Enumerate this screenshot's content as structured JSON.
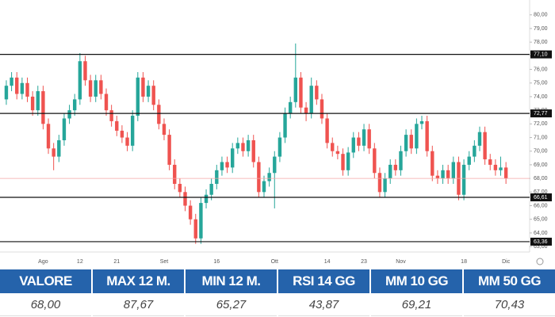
{
  "chart_data": {
    "type": "candlestick",
    "series": [
      {
        "up_color": "#26a69a",
        "down_color": "#ef5350",
        "open": [
          73.8,
          74.8,
          75.4,
          74.2,
          75.0,
          74.0,
          73.0,
          74.4,
          72.0,
          70.2,
          69.6,
          70.8,
          72.4,
          73.0,
          73.8,
          76.6,
          75.2,
          74.0,
          75.2,
          74.2,
          73.0,
          72.2,
          71.5,
          71.0,
          70.4,
          72.6,
          75.4,
          74.0,
          74.8,
          73.4,
          72.0,
          71.2,
          69.0,
          67.6,
          67.0,
          66.0,
          65.0,
          63.6,
          66.2,
          66.8,
          67.6,
          68.6,
          69.2,
          68.8,
          70.2,
          70.6,
          70.0,
          70.8,
          69.2,
          67.0,
          67.8,
          68.4,
          69.6,
          71.0,
          72.8,
          73.6,
          75.4,
          73.2,
          72.8,
          74.8,
          73.8,
          72.4,
          70.6,
          70.0,
          69.8,
          68.6,
          69.9,
          71.0,
          70.4,
          71.6,
          70.2,
          68.4,
          67.0,
          68.0,
          69.0,
          68.6,
          70.0,
          71.2,
          70.2,
          72.0,
          72.2,
          70.0,
          68.2,
          68.0,
          68.6,
          68.0,
          69.2,
          66.8,
          69.0,
          69.6,
          70.4,
          71.4,
          69.4,
          69.0,
          68.6,
          68.8
        ],
        "high": [
          75.2,
          75.8,
          75.8,
          75.4,
          75.4,
          74.4,
          74.8,
          74.8,
          72.4,
          70.6,
          71.2,
          72.8,
          73.4,
          74.2,
          77.2,
          77.0,
          75.6,
          75.6,
          75.6,
          74.6,
          73.4,
          72.6,
          71.9,
          71.4,
          73.0,
          75.8,
          75.8,
          75.2,
          75.2,
          73.8,
          72.4,
          71.6,
          69.4,
          68.0,
          67.4,
          66.4,
          65.4,
          66.6,
          67.2,
          68.0,
          69.0,
          69.6,
          69.6,
          70.6,
          71.0,
          71.0,
          71.2,
          71.2,
          69.6,
          68.2,
          68.8,
          70.0,
          71.4,
          73.2,
          74.0,
          77.9,
          75.8,
          73.6,
          75.4,
          75.2,
          74.2,
          72.8,
          71.0,
          70.4,
          70.2,
          70.3,
          71.4,
          71.4,
          72.0,
          72.0,
          70.6,
          68.8,
          68.4,
          69.4,
          69.4,
          70.4,
          71.6,
          71.6,
          72.4,
          72.6,
          72.6,
          70.4,
          68.6,
          69.0,
          69.0,
          69.6,
          69.6,
          69.4,
          70.0,
          70.8,
          71.8,
          71.8,
          69.8,
          69.4,
          69.6,
          69.2
        ],
        "low": [
          73.4,
          74.4,
          73.8,
          73.8,
          73.6,
          72.6,
          72.6,
          71.6,
          69.8,
          68.6,
          69.2,
          70.4,
          72.0,
          72.6,
          73.4,
          74.8,
          73.6,
          73.6,
          73.8,
          72.6,
          71.8,
          71.1,
          70.6,
          70.0,
          70.0,
          72.2,
          73.6,
          73.6,
          73.0,
          71.6,
          70.8,
          68.6,
          67.2,
          66.6,
          65.6,
          64.6,
          63.2,
          63.2,
          65.8,
          66.4,
          67.2,
          68.2,
          68.4,
          68.4,
          69.8,
          69.6,
          69.6,
          68.8,
          66.6,
          66.6,
          67.4,
          65.8,
          69.2,
          70.6,
          72.4,
          73.2,
          72.8,
          72.2,
          72.4,
          73.4,
          72.0,
          70.2,
          69.6,
          69.4,
          68.2,
          68.2,
          69.5,
          70.0,
          70.0,
          69.8,
          68.0,
          66.6,
          66.6,
          67.6,
          68.2,
          68.2,
          69.6,
          69.8,
          69.8,
          71.6,
          69.6,
          67.8,
          67.6,
          67.6,
          67.6,
          67.6,
          66.4,
          66.4,
          68.6,
          69.2,
          70.0,
          69.0,
          68.6,
          68.2,
          68.2,
          67.6
        ],
        "close": [
          74.8,
          75.4,
          74.2,
          75.0,
          74.0,
          73.0,
          74.4,
          72.0,
          70.2,
          69.6,
          70.8,
          72.4,
          73.0,
          73.8,
          76.6,
          75.2,
          74.0,
          75.2,
          74.2,
          73.0,
          72.2,
          71.5,
          71.0,
          70.4,
          72.6,
          75.4,
          74.0,
          74.8,
          73.4,
          72.0,
          71.2,
          69.0,
          67.6,
          67.0,
          66.0,
          65.0,
          63.6,
          66.2,
          66.8,
          67.6,
          68.6,
          69.2,
          68.8,
          70.2,
          70.6,
          70.0,
          70.8,
          69.2,
          67.0,
          67.8,
          68.4,
          69.6,
          71.0,
          72.8,
          73.6,
          75.4,
          73.2,
          72.8,
          74.8,
          73.8,
          72.4,
          70.6,
          70.0,
          69.8,
          68.6,
          69.9,
          71.0,
          70.4,
          71.6,
          70.2,
          68.4,
          67.0,
          68.0,
          69.0,
          68.6,
          70.0,
          71.2,
          70.2,
          72.0,
          72.2,
          70.0,
          68.2,
          68.0,
          68.6,
          68.0,
          69.2,
          66.8,
          69.0,
          69.6,
          70.4,
          71.4,
          69.4,
          69.0,
          68.6,
          68.8,
          68.0
        ]
      }
    ],
    "xlim": [
      -1.2,
      99.5
    ],
    "xticks": [
      {
        "value": 7,
        "label": "Ago"
      },
      {
        "value": 14,
        "label": "12"
      },
      {
        "value": 21,
        "label": "21"
      },
      {
        "value": 30,
        "label": "Set"
      },
      {
        "value": 40,
        "label": "16"
      },
      {
        "value": 51,
        "label": "Ott"
      },
      {
        "value": 61,
        "label": "14"
      },
      {
        "value": 68,
        "label": "23"
      },
      {
        "value": 75,
        "label": "Nov"
      },
      {
        "value": 87,
        "label": "18"
      },
      {
        "value": 95,
        "label": "Dic"
      }
    ],
    "ylim": [
      62.6,
      80.8
    ],
    "yticks": [
      {
        "value": 63,
        "label": "63,00"
      },
      {
        "value": 64,
        "label": "64,00"
      },
      {
        "value": 65,
        "label": "65,00"
      },
      {
        "value": 66,
        "label": "66,00"
      },
      {
        "value": 67,
        "label": "67,00"
      },
      {
        "value": 68,
        "label": "68,00"
      },
      {
        "value": 69,
        "label": "69,00"
      },
      {
        "value": 70,
        "label": "70,00"
      },
      {
        "value": 71,
        "label": "71,00"
      },
      {
        "value": 72,
        "label": "72,00"
      },
      {
        "value": 73,
        "label": "73,00"
      },
      {
        "value": 74,
        "label": "74,00"
      },
      {
        "value": 75,
        "label": "75,00"
      },
      {
        "value": 76,
        "label": "76,00"
      },
      {
        "value": 77,
        "label": "77,00"
      },
      {
        "value": 78,
        "label": "78,00"
      },
      {
        "value": 79,
        "label": "79,00"
      },
      {
        "value": 80,
        "label": "80,00"
      }
    ],
    "levels": [
      {
        "value": 77.1,
        "label": "77,10"
      },
      {
        "value": 72.77,
        "label": "72,77"
      },
      {
        "value": 66.61,
        "label": "66,61"
      },
      {
        "value": 63.36,
        "label": "63,36"
      }
    ],
    "level_color": "#111111",
    "last_price": {
      "value": 68.0,
      "label": "68,00",
      "color": "#f3a6a6"
    }
  },
  "table": {
    "headers": [
      "VALORE",
      "MAX 12 M.",
      "MIN 12 M.",
      "RSI 14 GG",
      "MM 10 GG",
      "MM 50 GG"
    ],
    "rows": [
      [
        "68,00",
        "87,67",
        "65,27",
        "43,87",
        "69,21",
        "70,43"
      ]
    ]
  }
}
